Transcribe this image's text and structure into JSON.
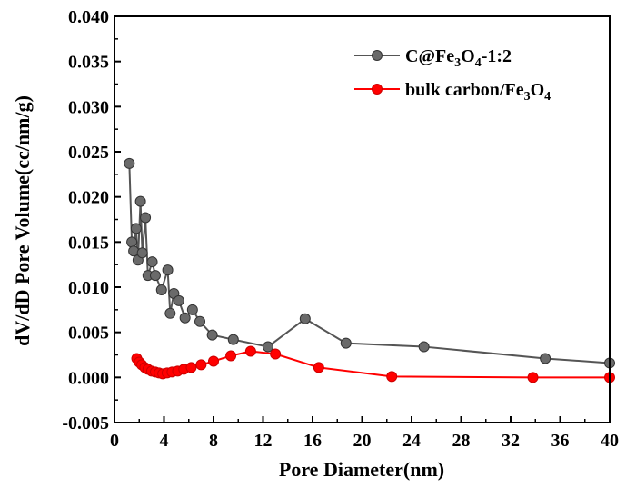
{
  "chart_data": {
    "type": "line",
    "title": "",
    "xlabel": "Pore Diameter(nm)",
    "ylabel": "dV/dD Pore Volume(cc/nm/g)",
    "xlim": [
      0,
      40
    ],
    "ylim": [
      -0.005,
      0.04
    ],
    "xticks": [
      0,
      4,
      8,
      12,
      16,
      20,
      24,
      28,
      32,
      36,
      40
    ],
    "xtick_labels": [
      "0",
      "4",
      "8",
      "12",
      "16",
      "20",
      "24",
      "28",
      "32",
      "36",
      "40"
    ],
    "yticks": [
      -0.005,
      0.0,
      0.005,
      0.01,
      0.015,
      0.02,
      0.025,
      0.03,
      0.035,
      0.04
    ],
    "ytick_labels": [
      "-0.005",
      "0.000",
      "0.005",
      "0.010",
      "0.015",
      "0.020",
      "0.025",
      "0.030",
      "0.035",
      "0.040"
    ],
    "grid": false,
    "legend_position": "top-right",
    "legend_texts": {
      "gray": {
        "main": "C@Fe",
        "s1": "3",
        "mid": "O",
        "s2": "4",
        "tail": "-1:2"
      },
      "red": {
        "main": "bulk carbon/Fe",
        "s1": "3",
        "mid": "O",
        "s2": "4",
        "tail": ""
      }
    },
    "series": [
      {
        "name": "C@Fe3O4-1:2",
        "color": "#555555",
        "marker_fill": "#6a6a6a",
        "points": [
          [
            1.2,
            0.0237
          ],
          [
            1.4,
            0.015
          ],
          [
            1.55,
            0.014
          ],
          [
            1.75,
            0.0165
          ],
          [
            1.9,
            0.013
          ],
          [
            2.1,
            0.0195
          ],
          [
            2.25,
            0.0138
          ],
          [
            2.5,
            0.0177
          ],
          [
            2.7,
            0.0113
          ],
          [
            3.05,
            0.0128
          ],
          [
            3.3,
            0.0113
          ],
          [
            3.8,
            0.0097
          ],
          [
            4.3,
            0.0119
          ],
          [
            4.5,
            0.0071
          ],
          [
            4.8,
            0.0093
          ],
          [
            5.2,
            0.0085
          ],
          [
            5.7,
            0.0066
          ],
          [
            6.3,
            0.0075
          ],
          [
            6.9,
            0.0062
          ],
          [
            7.9,
            0.0047
          ],
          [
            9.6,
            0.0042
          ],
          [
            12.4,
            0.0034
          ],
          [
            15.4,
            0.0065
          ],
          [
            18.7,
            0.0038
          ],
          [
            25.0,
            0.0034
          ],
          [
            34.8,
            0.0021
          ],
          [
            40.0,
            0.0016
          ]
        ],
        "markers_until": 26
      },
      {
        "name": "bulk carbon/Fe3O4",
        "color": "#ff0000",
        "marker_fill": "#ff0000",
        "points": [
          [
            1.8,
            0.0021
          ],
          [
            2.0,
            0.0017
          ],
          [
            2.2,
            0.0014
          ],
          [
            2.45,
            0.0011
          ],
          [
            2.7,
            0.0009
          ],
          [
            3.0,
            0.0007
          ],
          [
            3.3,
            0.0006
          ],
          [
            3.6,
            0.0005
          ],
          [
            3.9,
            0.0004
          ],
          [
            4.25,
            0.0005
          ],
          [
            4.65,
            0.0006
          ],
          [
            5.1,
            0.0007
          ],
          [
            5.6,
            0.0009
          ],
          [
            6.2,
            0.0011
          ],
          [
            7.0,
            0.0014
          ],
          [
            8.0,
            0.0018
          ],
          [
            9.4,
            0.0024
          ],
          [
            11.0,
            0.0029
          ],
          [
            13.0,
            0.0026
          ],
          [
            16.5,
            0.0011
          ],
          [
            22.4,
            0.0001
          ],
          [
            33.8,
            0.0
          ],
          [
            40.0,
            0.0
          ]
        ],
        "markers_until": 22
      }
    ]
  }
}
